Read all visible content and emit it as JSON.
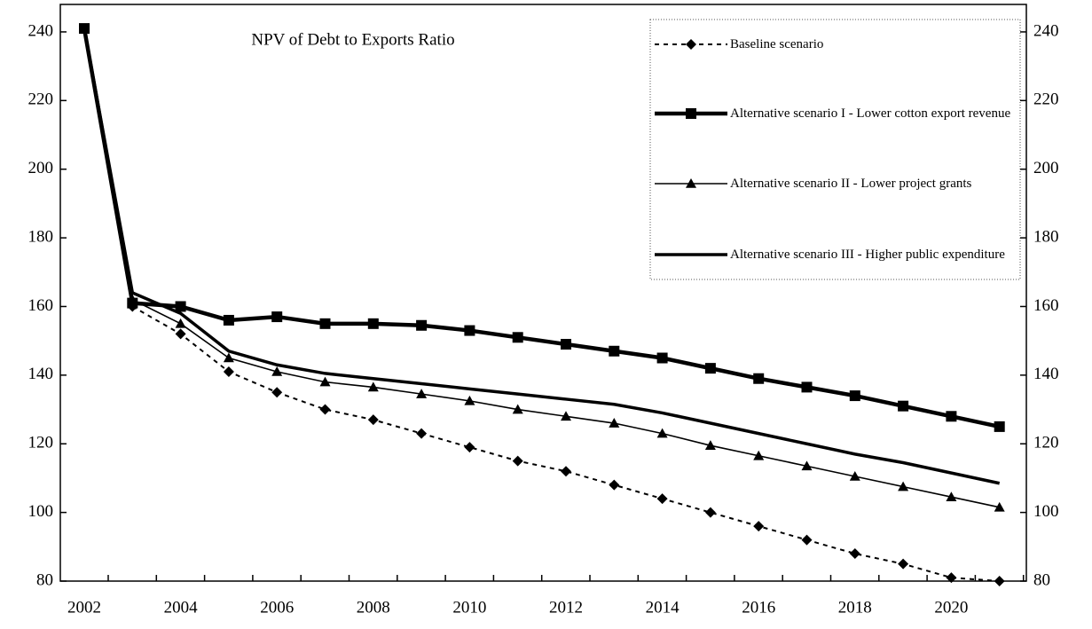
{
  "chart_data": {
    "type": "line",
    "title": "NPV of Debt to Exports Ratio",
    "categories": [
      "2002",
      null,
      "2004",
      null,
      "2006",
      null,
      "2008",
      null,
      "2010",
      null,
      "2012",
      null,
      "2014",
      null,
      "2016",
      null,
      "2018",
      null,
      "2020",
      null
    ],
    "series": [
      {
        "name": "Baseline scenario",
        "color": "#000000",
        "marker": "diamond",
        "dash": true,
        "width": 2,
        "values": [
          null,
          160,
          152,
          141,
          135,
          130,
          127,
          123,
          119,
          115,
          112,
          108,
          104,
          100,
          96,
          92,
          88,
          85,
          81,
          80
        ]
      },
      {
        "name": "Alternative scenario I - Lower cotton export revenue",
        "color": "#000000",
        "marker": "square",
        "dash": false,
        "width": 4.5,
        "values": [
          241,
          161,
          160,
          156,
          157,
          155,
          155,
          154.5,
          153,
          151,
          149,
          147,
          145,
          142,
          139,
          136.5,
          134,
          131,
          128,
          125
        ]
      },
      {
        "name": "Alternative scenario II - Lower project grants",
        "color": "#000000",
        "marker": "triangle",
        "dash": false,
        "width": 1.6,
        "values": [
          null,
          162,
          155,
          145,
          141,
          138,
          136.5,
          134.5,
          132.5,
          130,
          128,
          126,
          123,
          119.5,
          116.5,
          113.5,
          110.5,
          107.5,
          104.5,
          101.5
        ]
      },
      {
        "name": "Alternative scenario III - Higher public expenditure",
        "color": "#000000",
        "marker": "none",
        "dash": false,
        "width": 3.5,
        "values": [
          241,
          164,
          158,
          147,
          143,
          140.5,
          139,
          137.5,
          136,
          134.5,
          133,
          131.5,
          129,
          126,
          123,
          120,
          117,
          114.5,
          111.5,
          108.5
        ]
      }
    ],
    "ylim": [
      80,
      248
    ],
    "yticks": [
      80,
      100,
      120,
      140,
      160,
      180,
      200,
      220,
      240
    ],
    "y2lim": [
      80,
      248
    ],
    "y2ticks": [
      80,
      100,
      120,
      140,
      160,
      180,
      200,
      220,
      240
    ],
    "grid": false
  }
}
